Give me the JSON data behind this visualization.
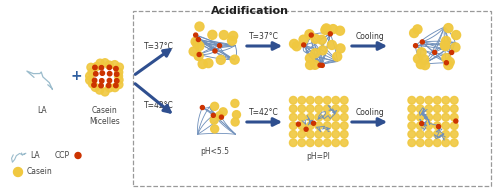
{
  "title": "Acidification",
  "background_color": "#ffffff",
  "dashed_box_color": "#999999",
  "arrow_color": "#2f4f8f",
  "label_LA": "LA",
  "label_casein_micelles": "Casein\nMicelles",
  "label_legend_LA": "LA",
  "label_legend_CCP": "CCP",
  "label_legend_casein": "Casein",
  "labels_bottom": [
    "pH<5.5",
    "pH=PI"
  ],
  "label_top_route": "T=37°C",
  "label_bottom_route": "T=42°C",
  "label_mid_top": "T=37°C",
  "label_mid_bottom": "T=42°C",
  "label_cooling_top": "Cooling",
  "label_cooling_bottom": "Cooling",
  "casein_color": "#f0c840",
  "CCP_color": "#cc3300",
  "LA_line_color": "#9bbccc",
  "network_color": "#7090bb",
  "plus_color": "#2f5fa0",
  "font_size_title": 8,
  "font_size_labels": 5.5,
  "font_size_legend": 5.5,
  "font_size_arrow_label": 5.5
}
